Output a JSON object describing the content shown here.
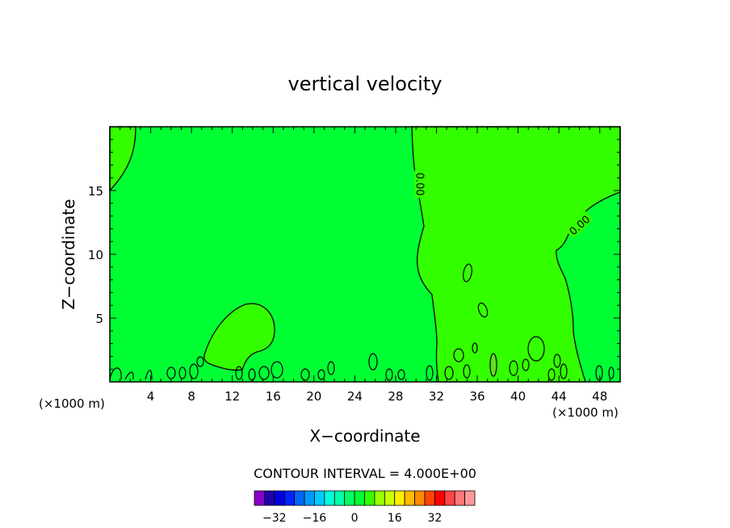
{
  "chart_data": {
    "type": "contour",
    "title": "vertical velocity",
    "xlabel": "X−coordinate",
    "ylabel": "Z−coordinate",
    "x_unit_left": "(×1000 m)",
    "x_unit_right": "(×1000 m)",
    "xlim": [
      0,
      50
    ],
    "ylim": [
      0,
      20
    ],
    "x_ticks": [
      "4",
      "8",
      "12",
      "16",
      "20",
      "24",
      "28",
      "32",
      "36",
      "40",
      "44",
      "48"
    ],
    "x_tick_values": [
      4,
      8,
      12,
      16,
      20,
      24,
      28,
      32,
      36,
      40,
      44,
      48
    ],
    "y_ticks": [
      "5",
      "10",
      "15"
    ],
    "y_tick_values": [
      5,
      10,
      15
    ],
    "contour_labels": [
      {
        "text": "0.00",
        "x": 30.4,
        "y": 15.5,
        "angle": 90
      },
      {
        "text": "0.00",
        "x": 46.0,
        "y": 12.3,
        "angle": -42
      }
    ],
    "regions": [
      {
        "name": "background",
        "color": "#00ff33"
      },
      {
        "name": "positive",
        "color": "#33ff00"
      }
    ],
    "contour_interval_text": "CONTOUR INTERVAL = 4.000E+00",
    "colorbar": {
      "colors": [
        "#8800cc",
        "#2200aa",
        "#0000dd",
        "#0022ff",
        "#0066ff",
        "#0099ff",
        "#00ccff",
        "#00ffdd",
        "#00ffaa",
        "#00ff66",
        "#00ff33",
        "#33ff00",
        "#99ff00",
        "#ccff00",
        "#ffee00",
        "#ffbb00",
        "#ff8800",
        "#ff4400",
        "#ff0000",
        "#ff4444",
        "#ff7777",
        "#ff9999"
      ],
      "labels": [
        "−32",
        "−16",
        "0",
        "16",
        "32"
      ],
      "label_values": [
        -32,
        -16,
        0,
        16,
        32
      ],
      "range": [
        -40,
        48
      ]
    }
  }
}
